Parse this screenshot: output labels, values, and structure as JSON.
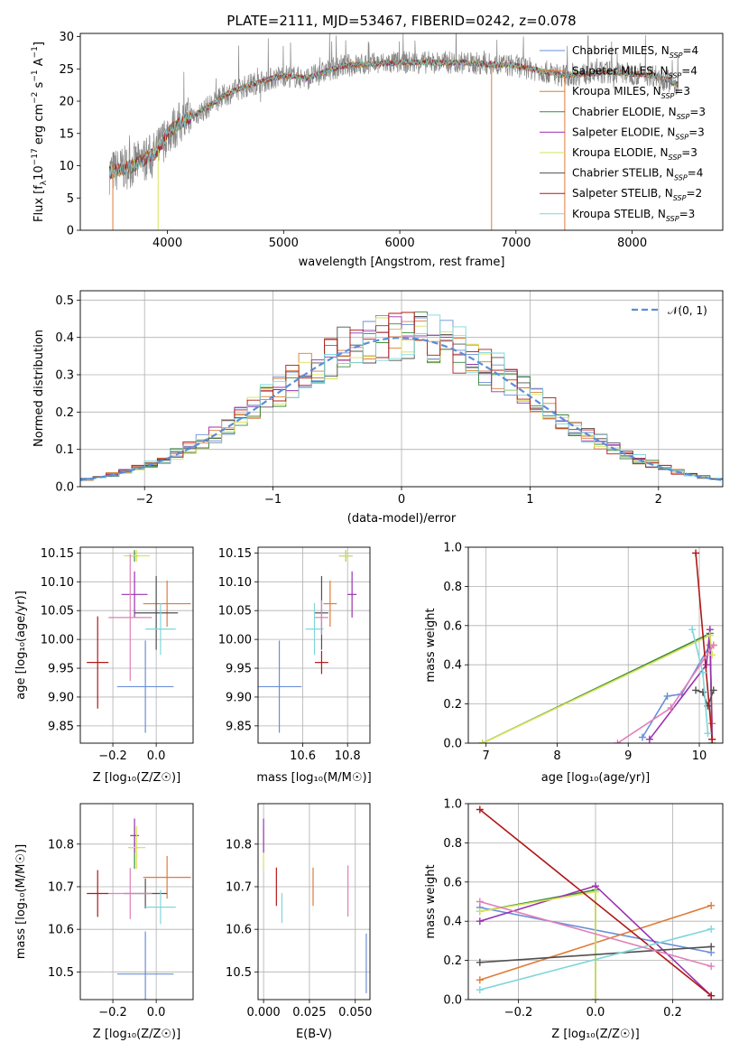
{
  "chart_data": [
    {
      "type": "line",
      "title": "PLATE=2111, MJD=53467, FIBERID=0242, z=0.078",
      "xlabel": "wavelength [Angstrom, rest frame]",
      "ylabel": "Flux [f$_\\lambda$10$^{-17}$ erg cm$^{-2}$ s$^{-1}$ A$^{-1}$]",
      "xlim": [
        3250,
        8780
      ],
      "ylim": [
        0,
        30.5
      ],
      "xticks": [
        4000,
        5000,
        6000,
        7000,
        8000
      ],
      "yticks": [
        0,
        5,
        10,
        15,
        20,
        25,
        30
      ],
      "grid": false,
      "legend_position": "top-right",
      "legend": [
        {
          "label": "Chabrier MILES, N",
          "sub": "SSP",
          "suffix": "=4",
          "color": "#6a8fd8"
        },
        {
          "label": "Salpeter MILES, N",
          "sub": "SSP",
          "suffix": "=4",
          "color": "#e07b39"
        },
        {
          "label": "Kroupa MILES, N",
          "sub": "SSP",
          "suffix": "=3",
          "color": "#d2822e"
        },
        {
          "label": "Chabrier ELODIE, N",
          "sub": "SSP",
          "suffix": "=3",
          "color": "#3c8a3c"
        },
        {
          "label": "Salpeter ELODIE, N",
          "sub": "SSP",
          "suffix": "=3",
          "color": "#9932b0"
        },
        {
          "label": "Kroupa ELODIE, N",
          "sub": "SSP",
          "suffix": "=3",
          "color": "#d6e35a"
        },
        {
          "label": "Chabrier STELIB, N",
          "sub": "SSP",
          "suffix": "=4",
          "color": "#505050"
        },
        {
          "label": "Salpeter STELIB, N",
          "sub": "SSP",
          "suffix": "=2",
          "color": "#b01818"
        },
        {
          "label": "Kroupa STELIB, N",
          "sub": "SSP",
          "suffix": "=3",
          "color": "#7fd6dc"
        }
      ],
      "continuum": [
        [
          3500,
          9
        ],
        [
          3700,
          10
        ],
        [
          3900,
          12
        ],
        [
          4000,
          15
        ],
        [
          4100,
          16.5
        ],
        [
          4300,
          18.5
        ],
        [
          4500,
          21
        ],
        [
          4700,
          22.5
        ],
        [
          5000,
          24
        ],
        [
          5200,
          23.5
        ],
        [
          5500,
          25.5
        ],
        [
          6000,
          26
        ],
        [
          6500,
          26
        ],
        [
          7000,
          25.5
        ],
        [
          7400,
          24
        ],
        [
          7800,
          24.5
        ],
        [
          8200,
          24
        ],
        [
          8400,
          22.5
        ]
      ],
      "dropouts": [
        3530,
        3920,
        6790,
        7420
      ]
    },
    {
      "type": "bar",
      "ylabel": "Normed distribution",
      "xlabel": "(data-model)/error",
      "xlim": [
        -2.5,
        2.5
      ],
      "ylim": [
        0,
        0.525
      ],
      "xticks": [
        -2,
        -1,
        0,
        1,
        2
      ],
      "yticks": [
        0.0,
        0.1,
        0.2,
        0.3,
        0.4,
        0.5
      ],
      "grid": true,
      "legend_position": "top-right",
      "gaussian_label": "𝒩(0, 1)",
      "gaussian_color": "#5b8dd9",
      "bin_width": 0.1
    },
    {
      "type": "scatter",
      "xlabel": "Z [log₁₀(Z/Z☉)]",
      "ylabel": "age  [log₁₀(age/yr)]",
      "xlim": [
        -0.35,
        0.17
      ],
      "ylim": [
        9.82,
        10.16
      ],
      "xticks": [
        -0.2,
        0.0
      ],
      "yticks": [
        9.85,
        9.9,
        9.95,
        10.0,
        10.05,
        10.1,
        10.15
      ],
      "points": [
        {
          "x": -0.05,
          "xerr": 0.13,
          "y": 9.918,
          "yerr": 0.08,
          "color": "#6a8fd8"
        },
        {
          "x": 0.05,
          "xerr": 0.11,
          "y": 10.062,
          "yerr": 0.04,
          "color": "#e07b39"
        },
        {
          "x": -0.1,
          "xerr": 0.02,
          "y": 10.145,
          "yerr": 0.01,
          "color": "#3c8a3c"
        },
        {
          "x": -0.1,
          "xerr": 0.06,
          "y": 10.078,
          "yerr": 0.04,
          "color": "#9932b0"
        },
        {
          "x": -0.09,
          "xerr": 0.06,
          "y": 10.145,
          "yerr": 0.01,
          "color": "#d6e35a"
        },
        {
          "x": 0.0,
          "xerr": 0.1,
          "y": 10.046,
          "yerr": 0.064,
          "color": "#505050"
        },
        {
          "x": -0.27,
          "xerr": 0.05,
          "y": 9.96,
          "yerr": 0.08,
          "color": "#b01818"
        },
        {
          "x": 0.02,
          "xerr": 0.07,
          "y": 10.018,
          "yerr": 0.045,
          "color": "#7fd6dc"
        },
        {
          "x": -0.12,
          "xerr": 0.1,
          "y": 10.038,
          "yerr": 0.11,
          "color": "#e07fb8"
        }
      ]
    },
    {
      "type": "scatter",
      "xlabel": "mass [log₁₀(M/M☉)]",
      "ylabel": "",
      "xlim": [
        10.4,
        10.9
      ],
      "ylim": [
        9.82,
        10.16
      ],
      "xticks": [
        10.6,
        10.8
      ],
      "yticks": [
        9.85,
        9.9,
        9.95,
        10.0,
        10.05,
        10.1,
        10.15
      ],
      "points": [
        {
          "x": 10.495,
          "xerr": 0.1,
          "y": 9.918,
          "yerr": 0.08,
          "color": "#6a8fd8"
        },
        {
          "x": 10.722,
          "xerr": 0.03,
          "y": 10.062,
          "yerr": 0.04,
          "color": "#e07b39"
        },
        {
          "x": 10.792,
          "xerr": 0.03,
          "y": 10.145,
          "yerr": 0.01,
          "color": "#3c8a3c"
        },
        {
          "x": 10.82,
          "xerr": 0.02,
          "y": 10.078,
          "yerr": 0.04,
          "color": "#9932b0"
        },
        {
          "x": 10.792,
          "xerr": 0.03,
          "y": 10.145,
          "yerr": 0.01,
          "color": "#d6e35a"
        },
        {
          "x": 10.684,
          "xerr": 0.03,
          "y": 10.046,
          "yerr": 0.064,
          "color": "#505050"
        },
        {
          "x": 10.684,
          "xerr": 0.03,
          "y": 9.96,
          "yerr": 0.02,
          "color": "#b01818"
        },
        {
          "x": 10.652,
          "xerr": 0.04,
          "y": 10.018,
          "yerr": 0.045,
          "color": "#7fd6dc"
        },
        {
          "x": 10.684,
          "xerr": 0.03,
          "y": 10.038,
          "yerr": 0.03,
          "color": "#e07fb8"
        }
      ]
    },
    {
      "type": "line",
      "xlabel": "age  [log₁₀(age/yr)]",
      "ylabel": "mass weight",
      "xlim": [
        6.75,
        10.33
      ],
      "ylim": [
        0,
        1.0
      ],
      "xticks": [
        7,
        8,
        9,
        10
      ],
      "yticks": [
        0.0,
        0.2,
        0.4,
        0.6,
        0.8,
        1.0
      ],
      "grid": true,
      "series": [
        {
          "color": "#6a8fd8",
          "x": [
            9.2,
            9.55,
            9.75,
            10.15
          ],
          "y": [
            0.03,
            0.24,
            0.25,
            0.5
          ]
        },
        {
          "color": "#e07b39",
          "x": [
            10.18,
            10.15,
            10.2
          ],
          "y": [
            0.1,
            0.5,
            0.5
          ]
        },
        {
          "color": "#3c8a3c",
          "x": [
            6.95,
            10.15,
            10.18
          ],
          "y": [
            0.0,
            0.56,
            0.0
          ]
        },
        {
          "color": "#9932b0",
          "x": [
            9.3,
            10.1,
            10.15,
            10.18
          ],
          "y": [
            0.02,
            0.4,
            0.58,
            0.02
          ]
        },
        {
          "color": "#d6e35a",
          "x": [
            6.95,
            10.15,
            10.18
          ],
          "y": [
            0.0,
            0.55,
            0.45
          ]
        },
        {
          "color": "#505050",
          "x": [
            9.95,
            10.05,
            10.12,
            10.2
          ],
          "y": [
            0.27,
            0.26,
            0.19,
            0.27
          ]
        },
        {
          "color": "#b01818",
          "x": [
            9.95,
            10.18
          ],
          "y": [
            0.97,
            0.02
          ]
        },
        {
          "color": "#7fd6dc",
          "x": [
            9.9,
            10.05,
            10.12
          ],
          "y": [
            0.58,
            0.36,
            0.05
          ]
        },
        {
          "color": "#e07fb8",
          "x": [
            8.85,
            9.6,
            10.2
          ],
          "y": [
            0.0,
            0.18,
            0.5
          ]
        }
      ]
    },
    {
      "type": "scatter",
      "xlabel": "Z [log₁₀(Z/Z☉)]",
      "ylabel": "mass [log₁₀(M/M☉)]",
      "xlim": [
        -0.35,
        0.17
      ],
      "ylim": [
        10.435,
        10.895
      ],
      "xticks": [
        -0.2,
        0.0
      ],
      "yticks": [
        10.5,
        10.6,
        10.7,
        10.8
      ],
      "points": [
        {
          "x": -0.05,
          "xerr": 0.13,
          "y": 10.495,
          "yerr": 0.1,
          "color": "#6a8fd8"
        },
        {
          "x": 0.05,
          "xerr": 0.11,
          "y": 10.722,
          "yerr": 0.05,
          "color": "#e07b39"
        },
        {
          "x": -0.1,
          "xerr": 0.02,
          "y": 10.792,
          "yerr": 0.05,
          "color": "#3c8a3c"
        },
        {
          "x": -0.1,
          "xerr": 0.02,
          "y": 10.82,
          "yerr": 0.04,
          "color": "#9932b0"
        },
        {
          "x": -0.09,
          "xerr": 0.04,
          "y": 10.792,
          "yerr": 0.05,
          "color": "#d6e35a"
        },
        {
          "x": -0.05,
          "xerr": 0.1,
          "y": 10.684,
          "yerr": 0.035,
          "color": "#505050"
        },
        {
          "x": -0.27,
          "xerr": 0.05,
          "y": 10.684,
          "yerr": 0.055,
          "color": "#b01818"
        },
        {
          "x": 0.02,
          "xerr": 0.07,
          "y": 10.652,
          "yerr": 0.04,
          "color": "#7fd6dc"
        },
        {
          "x": -0.12,
          "xerr": 0.1,
          "y": 10.684,
          "yerr": 0.06,
          "color": "#e07fb8"
        }
      ]
    },
    {
      "type": "scatter",
      "xlabel": "E(B-V)",
      "ylabel": "",
      "xlim": [
        -0.003,
        0.058
      ],
      "ylim": [
        10.435,
        10.895
      ],
      "xticks": [
        0.0,
        0.025,
        0.05
      ],
      "yticks": [
        10.5,
        10.6,
        10.7,
        10.8
      ],
      "points": [
        {
          "x": 0.056,
          "xerr": 0,
          "y": 10.52,
          "yerr": 0.07,
          "color": "#6a8fd8"
        },
        {
          "x": 0.027,
          "xerr": 0,
          "y": 10.7,
          "yerr": 0.045,
          "color": "#e07b39"
        },
        {
          "x": 0.0,
          "xerr": 0,
          "y": 10.79,
          "yerr": 0.05,
          "color": "#d6e35a"
        },
        {
          "x": 0.0,
          "xerr": 0,
          "y": 10.82,
          "yerr": 0.04,
          "color": "#9932b0"
        },
        {
          "x": 0.007,
          "xerr": 0,
          "y": 10.7,
          "yerr": 0.045,
          "color": "#b01818"
        },
        {
          "x": 0.01,
          "xerr": 0,
          "y": 10.65,
          "yerr": 0.035,
          "color": "#7fd6dc"
        },
        {
          "x": 0.046,
          "xerr": 0,
          "y": 10.69,
          "yerr": 0.06,
          "color": "#e07fb8"
        }
      ]
    },
    {
      "type": "line",
      "xlabel": "Z [log₁₀(Z/Z☉)]",
      "ylabel": "mass weight",
      "xlim": [
        -0.33,
        0.33
      ],
      "ylim": [
        0,
        1.0
      ],
      "xticks": [
        -0.2,
        0.0,
        0.2
      ],
      "yticks": [
        0.0,
        0.2,
        0.4,
        0.6,
        0.8,
        1.0
      ],
      "grid": true,
      "series": [
        {
          "color": "#6a8fd8",
          "x": [
            -0.3,
            0.3
          ],
          "y": [
            0.47,
            0.24
          ]
        },
        {
          "color": "#e07b39",
          "x": [
            -0.3,
            0.3
          ],
          "y": [
            0.1,
            0.48
          ]
        },
        {
          "color": "#3c8a3c",
          "x": [
            -0.3,
            0.0,
            0.0
          ],
          "y": [
            0.45,
            0.56,
            0.0
          ]
        },
        {
          "color": "#9932b0",
          "x": [
            -0.3,
            0.0,
            0.3
          ],
          "y": [
            0.4,
            0.58,
            0.02
          ]
        },
        {
          "color": "#d6e35a",
          "x": [
            -0.3,
            0.0,
            0.0
          ],
          "y": [
            0.45,
            0.55,
            0.0
          ]
        },
        {
          "color": "#505050",
          "x": [
            -0.3,
            0.3
          ],
          "y": [
            0.19,
            0.27
          ]
        },
        {
          "color": "#b01818",
          "x": [
            -0.3,
            0.3
          ],
          "y": [
            0.97,
            0.02
          ]
        },
        {
          "color": "#7fd6dc",
          "x": [
            -0.3,
            0.3
          ],
          "y": [
            0.05,
            0.36
          ]
        },
        {
          "color": "#e07fb8",
          "x": [
            -0.3,
            0.3
          ],
          "y": [
            0.5,
            0.17
          ]
        }
      ]
    }
  ]
}
